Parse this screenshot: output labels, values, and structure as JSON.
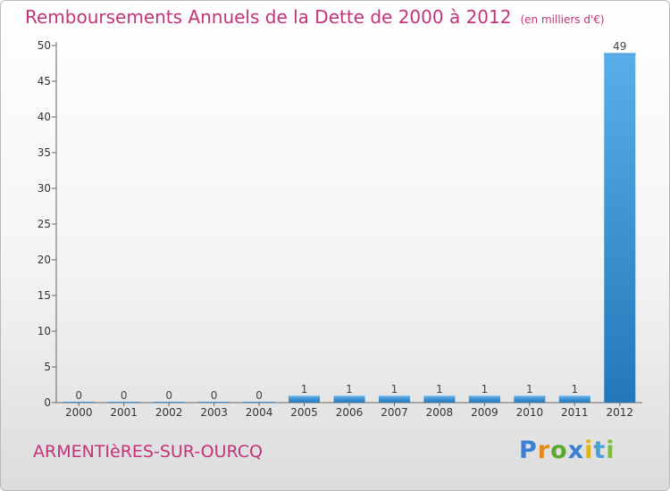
{
  "chart_data": {
    "type": "bar",
    "title": "Remboursements Annuels de la Dette de 2000 à 2012",
    "unit_label": "(en milliers d'€)",
    "categories": [
      "2000",
      "2001",
      "2002",
      "2003",
      "2004",
      "2005",
      "2006",
      "2007",
      "2008",
      "2009",
      "2010",
      "2011",
      "2012"
    ],
    "values": [
      0,
      0,
      0,
      0,
      0,
      1,
      1,
      1,
      1,
      1,
      1,
      1,
      49
    ],
    "data_labels": [
      "0",
      "0",
      "0",
      "0",
      "0",
      "1",
      "1",
      "1",
      "1",
      "1",
      "1",
      "1",
      "49"
    ],
    "ylim": [
      0,
      50
    ],
    "yticks": [
      0,
      5,
      10,
      15,
      20,
      25,
      30,
      35,
      40,
      45,
      50
    ],
    "ytick_labels": [
      "0",
      "5",
      "10",
      "15",
      "20",
      "25",
      "30",
      "35",
      "40",
      "45",
      "50"
    ],
    "xlabel": "",
    "ylabel": "",
    "grid": false,
    "bar_color": "#2f86d0"
  },
  "footer": {
    "commune": "ARMENTIèRES-SUR-OURCQ"
  },
  "brand": {
    "letters": [
      "P",
      "r",
      "o",
      "x",
      "i",
      "t",
      "i"
    ]
  }
}
